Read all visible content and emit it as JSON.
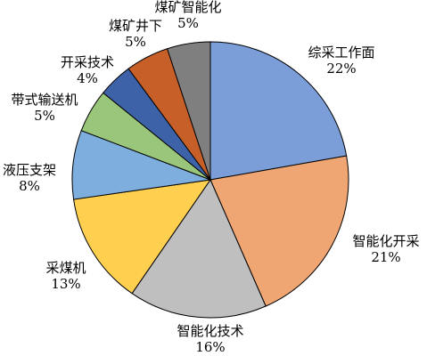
{
  "chart_data": {
    "type": "pie",
    "title": "",
    "slices": [
      {
        "label": "综采工作面",
        "value": 22,
        "value_label": "22%",
        "color": "#7B9ED8"
      },
      {
        "label": "智能化开采",
        "value": 21,
        "value_label": "21%",
        "color": "#F0A673"
      },
      {
        "label": "智能化技术",
        "value": 16,
        "value_label": "16%",
        "color": "#BFBFBF"
      },
      {
        "label": "采煤机",
        "value": 13,
        "value_label": "13%",
        "color": "#FFD050"
      },
      {
        "label": "液压支架",
        "value": 8,
        "value_label": "8%",
        "color": "#7EAEDD"
      },
      {
        "label": "带式输送机",
        "value": 5,
        "value_label": "5%",
        "color": "#99C67A"
      },
      {
        "label": "开采技术",
        "value": 4,
        "value_label": "4%",
        "color": "#3D62A8"
      },
      {
        "label": "煤矿井下",
        "value": 5,
        "value_label": "5%",
        "color": "#C65F28"
      },
      {
        "label": "煤矿智能化",
        "value": 5,
        "value_label": "5%",
        "color": "#7F7F7F"
      }
    ],
    "start_angle": "12 o'clock",
    "direction": "clockwise",
    "legend": "none",
    "label_position": "outside"
  }
}
